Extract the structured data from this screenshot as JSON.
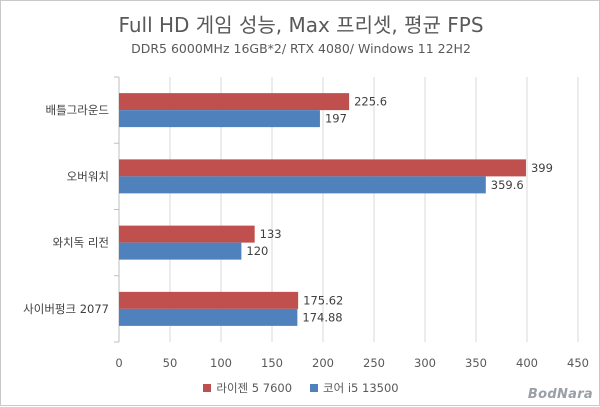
{
  "chart_data": {
    "type": "bar",
    "orientation": "horizontal",
    "title": "Full HD 게임 성능, Max 프리셋, 평균 FPS",
    "subtitle": "DDR5 6000MHz 16GB*2/ RTX 4080/ Windows 11 22H2",
    "categories": [
      "배틀그라운드",
      "오버워치",
      "와치독 리전",
      "사이버펑크 2077"
    ],
    "series": [
      {
        "name": "라이젠 5 7600",
        "color": "#c0504d",
        "values": [
          225.6,
          399,
          133,
          175.62
        ],
        "labels": [
          "225.6",
          "399",
          "133",
          "175.62"
        ]
      },
      {
        "name": "코어 i5 13500",
        "color": "#4f81bd",
        "values": [
          197,
          359.6,
          120,
          174.88
        ],
        "labels": [
          "197",
          "359.6",
          "120",
          "174.88"
        ]
      }
    ],
    "xlim": [
      0,
      450
    ],
    "xticks": [
      "0",
      "50",
      "100",
      "150",
      "200",
      "250",
      "300",
      "350",
      "400",
      "450"
    ],
    "grid": true,
    "legend": "bottom"
  },
  "watermark": "BodNara"
}
